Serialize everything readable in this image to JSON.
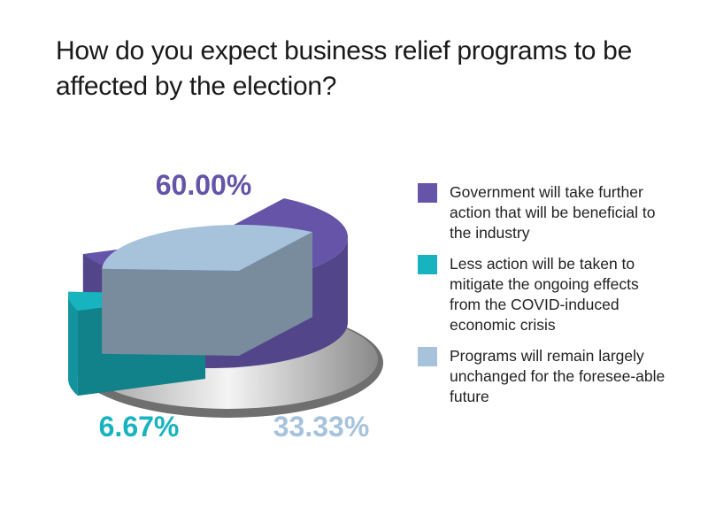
{
  "chart_data": {
    "type": "pie",
    "title": "How do you expect business relief programs to be affected by the election?",
    "slices": [
      {
        "label": "Government will take further action that will be beneficial to the industry",
        "value": 60.0,
        "display": "60.00%",
        "color": "#6554a8"
      },
      {
        "label": "Less action will be taken to mitigate the ongoing effects from the COVID-induced economic crisis",
        "value": 6.67,
        "display": "6.67%",
        "color": "#17b3bf"
      },
      {
        "label": "Programs will remain largely unchanged for the foresee-able future",
        "value": 33.33,
        "display": "33.33%",
        "color": "#a7c3dc"
      }
    ],
    "legend_position": "right",
    "style": "3d-exploded"
  }
}
